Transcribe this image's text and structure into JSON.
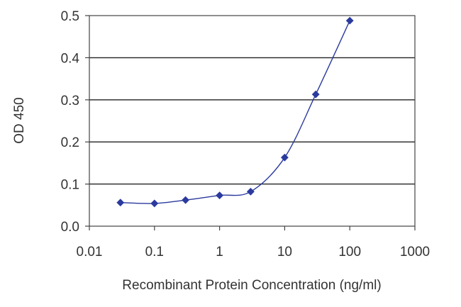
{
  "chart_data": {
    "type": "line",
    "xscale": "log",
    "xlabel": "Recombinant Protein Concentration (ng/ml)",
    "ylabel": "OD 450",
    "xlim": [
      0.01,
      1000
    ],
    "ylim": [
      0,
      0.5
    ],
    "xticks": [
      0.01,
      0.1,
      1,
      10,
      100,
      1000
    ],
    "xtick_labels": [
      "0.01",
      "0.1",
      "1",
      "10",
      "100",
      "1000"
    ],
    "yticks": [
      0,
      0.1,
      0.2,
      0.3,
      0.4,
      0.5
    ],
    "ytick_labels": [
      "0.0",
      "0.1",
      "0.2",
      "0.3",
      "0.4",
      "0.5"
    ],
    "grid": "horizontal",
    "line_color": "#2b3a9e",
    "marker": "diamond",
    "series": [
      {
        "x": [
          0.03,
          0.1,
          0.3,
          1,
          3,
          10,
          30,
          100
        ],
        "y": [
          0.056,
          0.054,
          0.062,
          0.073,
          0.082,
          0.163,
          0.313,
          0.488
        ]
      }
    ]
  }
}
